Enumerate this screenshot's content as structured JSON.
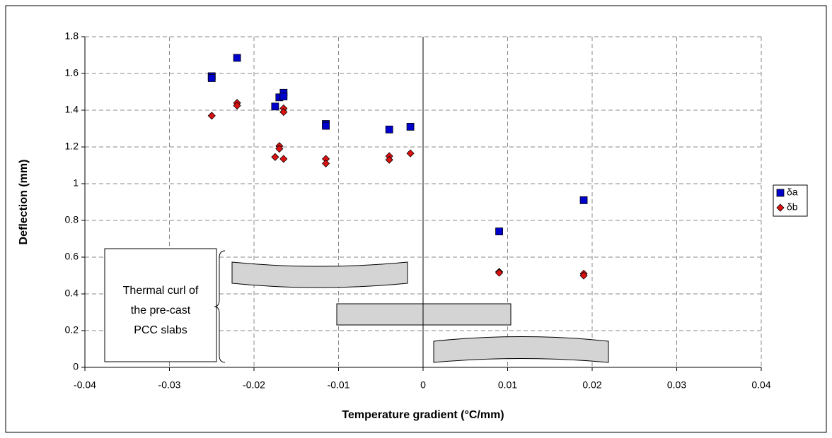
{
  "chart_data": {
    "type": "scatter",
    "x_label": "Temperature gradient (°C/mm)",
    "y_label": "Deflection (mm)",
    "xlim": [
      -0.04,
      0.04
    ],
    "ylim": [
      0,
      1.8
    ],
    "xticks": [
      -0.04,
      -0.03,
      -0.02,
      -0.01,
      0,
      0.01,
      0.02,
      0.03,
      0.04
    ],
    "yticks": [
      0,
      0.2,
      0.4,
      0.6,
      0.8,
      1,
      1.2,
      1.4,
      1.6,
      1.8
    ],
    "grid": true,
    "legend": "right",
    "annotation": [
      "Thermal curl of",
      "the pre-cast",
      "PCC slabs"
    ],
    "series": [
      {
        "name": "δa",
        "color": "#0000cc",
        "marker": "square",
        "x": [
          -0.025,
          -0.025,
          -0.022,
          -0.0175,
          -0.017,
          -0.0165,
          -0.0165,
          -0.0115,
          -0.0115,
          -0.004,
          -0.0015,
          0.009,
          0.019
        ],
        "values": [
          1.585,
          1.575,
          1.685,
          1.42,
          1.47,
          1.495,
          1.475,
          1.325,
          1.315,
          1.295,
          1.31,
          0.74,
          0.91
        ]
      },
      {
        "name": "δb",
        "color": "#dd1111",
        "marker": "diamond",
        "x": [
          -0.025,
          -0.022,
          -0.022,
          -0.0175,
          -0.017,
          -0.017,
          -0.0165,
          -0.0165,
          -0.0165,
          -0.0115,
          -0.0115,
          -0.004,
          -0.004,
          -0.0015,
          0.009,
          0.009,
          0.019,
          0.019
        ],
        "values": [
          1.37,
          1.44,
          1.425,
          1.145,
          1.205,
          1.19,
          1.41,
          1.39,
          1.135,
          1.135,
          1.11,
          1.15,
          1.13,
          1.165,
          0.52,
          0.515,
          0.51,
          0.5
        ]
      }
    ]
  }
}
